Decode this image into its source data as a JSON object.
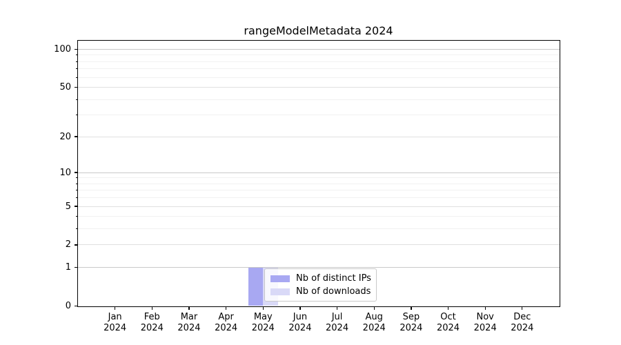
{
  "figure": {
    "background": "#ffffff"
  },
  "chart_data": {
    "type": "bar",
    "title": "rangeModelMetadata 2024",
    "categories": [
      [
        "Jan",
        "2024"
      ],
      [
        "Feb",
        "2024"
      ],
      [
        "Mar",
        "2024"
      ],
      [
        "Apr",
        "2024"
      ],
      [
        "May",
        "2024"
      ],
      [
        "Jun",
        "2024"
      ],
      [
        "Jul",
        "2024"
      ],
      [
        "Aug",
        "2024"
      ],
      [
        "Sep",
        "2024"
      ],
      [
        "Oct",
        "2024"
      ],
      [
        "Nov",
        "2024"
      ],
      [
        "Dec",
        "2024"
      ]
    ],
    "series": [
      {
        "name": "Nb of distinct IPs",
        "color": "#a8a8f2",
        "values": [
          0,
          0,
          0,
          0,
          1,
          0,
          0,
          0,
          0,
          0,
          0,
          0
        ]
      },
      {
        "name": "Nb of downloads",
        "color": "#d9d9f7",
        "values": [
          0,
          0,
          0,
          0,
          1,
          0,
          0,
          0,
          0,
          0,
          0,
          0
        ]
      }
    ],
    "xlabel": "",
    "ylabel": "",
    "y_axis": {
      "scale": "log1p",
      "major_ticks": [
        0,
        1,
        2,
        5,
        10,
        20,
        50,
        100
      ],
      "minor_ticks": [
        3,
        4,
        6,
        7,
        8,
        9,
        30,
        40,
        60,
        70,
        80,
        90
      ],
      "max": 116
    },
    "grid": "on",
    "legend_position": "inside lower-center of plot"
  },
  "colors": {
    "spine": "#000000",
    "text": "#000000",
    "grid_decade": "#c8c8c8",
    "grid_major": "#e0e0e0",
    "grid_minor": "#f1f1f1",
    "legend_border": "#c9c9c9"
  }
}
